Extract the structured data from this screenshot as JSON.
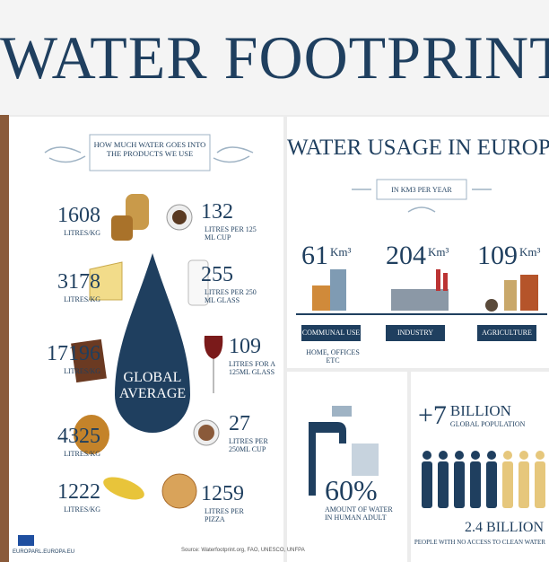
{
  "header": {
    "title": "WATER FOOTPRINT"
  },
  "products": {
    "heading": "HOW MUCH WATER GOES INTO THE PRODUCTS WE USE",
    "center": "GLOBAL AVERAGE",
    "left": [
      {
        "value": 1608,
        "unit": "LITRES/KG"
      },
      {
        "value": 3178,
        "unit": "LITRES/KG"
      },
      {
        "value": 17196,
        "unit": "LITRES/KG"
      },
      {
        "value": 4325,
        "unit": "LITRES/KG"
      },
      {
        "value": 1222,
        "unit": "LITRES/KG"
      }
    ],
    "right": [
      {
        "value": 132,
        "unit": "LITRES PER 125 ML CUP"
      },
      {
        "value": 255,
        "unit": "LITRES PER 250 ML GLASS"
      },
      {
        "value": 109,
        "unit": "LITRES FOR A 125ML GLASS"
      },
      {
        "value": 27,
        "unit": "LITRES PER 250ML CUP"
      },
      {
        "value": 1259,
        "unit": "LITRES PER PIZZA"
      }
    ]
  },
  "europe": {
    "title": "WATER USAGE IN EUROPE",
    "subtitle": "IN KM3 PER YEAR",
    "sectors": [
      {
        "value": 61,
        "unit": "Km³",
        "label": "COMMUNAL USE",
        "note": "HOME, OFFICES ETC"
      },
      {
        "value": 204,
        "unit": "Km³",
        "label": "INDUSTRY"
      },
      {
        "value": 109,
        "unit": "Km³",
        "label": "AGRICULTURE"
      }
    ]
  },
  "human": {
    "value": "60%",
    "caption": "AMOUNT OF WATER IN HUMAN ADULT"
  },
  "population": {
    "headline": "+7",
    "headline_unit": "BILLION",
    "caption": "GLOBAL POPULATION",
    "no_access": "2.4 BILLION",
    "no_access_caption": "PEOPLE WITH NO ACCESS TO CLEAN WATER"
  },
  "footer": {
    "source": "Source: Waterfootprint.org, FAO, UNESCO, UNFPA",
    "site": "EUROPARL.EUROPA.EU"
  }
}
